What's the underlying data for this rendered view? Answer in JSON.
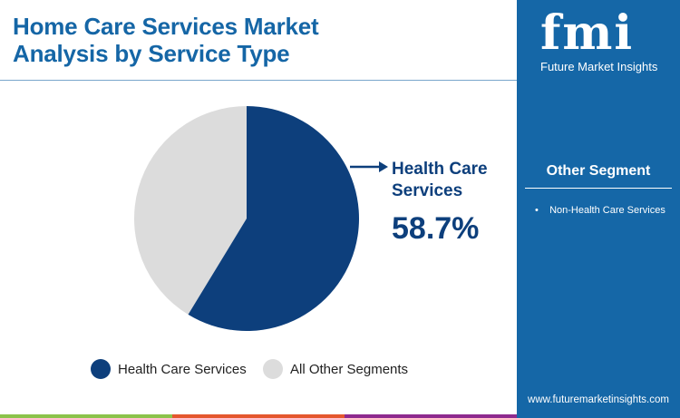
{
  "header": {
    "title_line1": "Home Care Services Market",
    "title_line2": "Analysis by Service Type"
  },
  "chart_data": {
    "type": "pie",
    "title": "Home Care Services Market Analysis by Service Type",
    "slices": [
      {
        "label": "Health Care Services",
        "value": 58.7,
        "color": "#0d3f7c"
      },
      {
        "label": "All Other Segments",
        "value": 41.3,
        "color": "#dcdcdc"
      }
    ],
    "annotation": {
      "label": "Health Care Services",
      "value": "58.7%"
    },
    "legend_position": "bottom"
  },
  "sidebar": {
    "brand": "fmi",
    "brand_name": "Future Market Insights",
    "segment_heading": "Other Segment",
    "segment_items": [
      "Non-Health Care Services"
    ],
    "url": "www.futuremarketinsights.com"
  },
  "colors": {
    "sidebar": "#1567a7",
    "title": "#1566a6",
    "bottom_bar": [
      "#8bc34a",
      "#e4572e",
      "#8e2a8e"
    ]
  }
}
